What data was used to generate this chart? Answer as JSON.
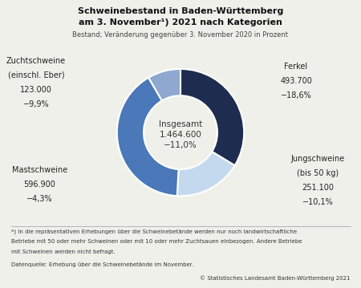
{
  "title_line1": "Schweinebestand in Baden-Württemberg",
  "title_line2": "am 3. November¹) 2021 nach Kategorien",
  "subtitle": "Bestand; Veränderung gegenüber 3. November 2020 in Prozent",
  "center_label": "Insgesamt",
  "center_value": "1.464.600",
  "center_change": "−11,0%",
  "segments": [
    {
      "label": "Ferkel",
      "value": 493700,
      "change": "−18,6%",
      "display_value": "493.700",
      "color": "#1e2d4f"
    },
    {
      "label": "Jungschweine\n(bis 50 kg)",
      "value": 251100,
      "change": "−10,1%",
      "display_value": "251.100",
      "color": "#c5d9ee"
    },
    {
      "label": "Mastschweine",
      "value": 596900,
      "change": "−4,3%",
      "display_value": "596.900",
      "color": "#4a78b8"
    },
    {
      "label": "Zuchtschweine\n(einschl. Eber)",
      "value": 123000,
      "change": "−9,9%",
      "display_value": "123.000",
      "color": "#8fa8d0"
    }
  ],
  "footnote1": "*) In die repräsentativen Erhebungen über die Schweinebetände werden nur noch landwirtschaftliche",
  "footnote2": "Betriebe mit 50 oder mehr Schweinen oder mit 10 oder mehr Zuchtsauen einbezogen. Andere Betriebe",
  "footnote3": "mit Schweinen werden nicht befragt.",
  "datasource": "Datenquelle: Erhebung über die Schweinebetände im November.",
  "copyright": "© Statistisches Landesamt Baden-Württemberg 2021",
  "background_color": "#f0f0eb"
}
